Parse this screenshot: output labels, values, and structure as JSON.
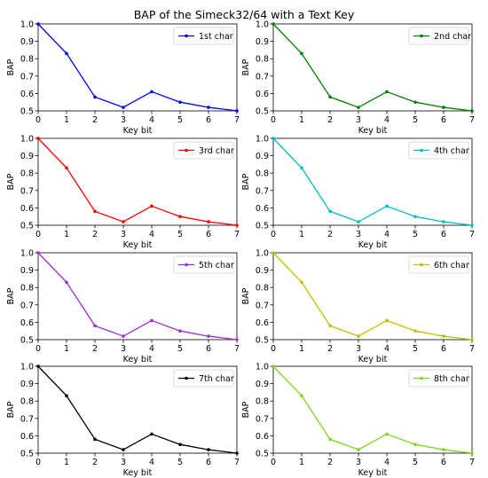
{
  "figure_title": "BAP of the Simeck32/64 with a Text Key",
  "chart_data": [
    {
      "type": "line",
      "title": "",
      "xlabel": "Key bit",
      "ylabel": "BAP",
      "x": [
        0,
        1,
        2,
        3,
        4,
        5,
        6,
        7
      ],
      "xlim": [
        0,
        7
      ],
      "ylim": [
        0.5,
        1.0
      ],
      "series": [
        {
          "name": "1st char",
          "color": "#0000ff",
          "values": [
            1.0,
            0.83,
            0.58,
            0.52,
            0.61,
            0.55,
            0.52,
            0.5
          ]
        }
      ],
      "legend": "top-right",
      "grid": false
    },
    {
      "type": "line",
      "title": "",
      "xlabel": "Key bit",
      "ylabel": "BAP",
      "x": [
        0,
        1,
        2,
        3,
        4,
        5,
        6,
        7
      ],
      "xlim": [
        0,
        7
      ],
      "ylim": [
        0.5,
        1.0
      ],
      "series": [
        {
          "name": "2nd char",
          "color": "#008000",
          "values": [
            1.0,
            0.83,
            0.58,
            0.52,
            0.61,
            0.55,
            0.52,
            0.5
          ]
        }
      ],
      "legend": "top-right",
      "grid": false
    },
    {
      "type": "line",
      "title": "",
      "xlabel": "Key bit",
      "ylabel": "BAP",
      "x": [
        0,
        1,
        2,
        3,
        4,
        5,
        6,
        7
      ],
      "xlim": [
        0,
        7
      ],
      "ylim": [
        0.5,
        1.0
      ],
      "series": [
        {
          "name": "3rd char",
          "color": "#ff0000",
          "values": [
            1.0,
            0.83,
            0.58,
            0.52,
            0.61,
            0.55,
            0.52,
            0.5
          ]
        }
      ],
      "legend": "top-right",
      "grid": false
    },
    {
      "type": "line",
      "title": "",
      "xlabel": "Key bit",
      "ylabel": "BAP",
      "x": [
        0,
        1,
        2,
        3,
        4,
        5,
        6,
        7
      ],
      "xlim": [
        0,
        7
      ],
      "ylim": [
        0.5,
        1.0
      ],
      "series": [
        {
          "name": "4th char",
          "color": "#00bfbf",
          "values": [
            1.0,
            0.83,
            0.58,
            0.52,
            0.61,
            0.55,
            0.52,
            0.5
          ]
        }
      ],
      "legend": "top-right",
      "grid": false
    },
    {
      "type": "line",
      "title": "",
      "xlabel": "Key bit",
      "ylabel": "BAP",
      "x": [
        0,
        1,
        2,
        3,
        4,
        5,
        6,
        7
      ],
      "xlim": [
        0,
        7
      ],
      "ylim": [
        0.5,
        1.0
      ],
      "series": [
        {
          "name": "5th char",
          "color": "#9a30d8",
          "values": [
            1.0,
            0.83,
            0.58,
            0.52,
            0.61,
            0.55,
            0.52,
            0.5
          ]
        }
      ],
      "legend": "top-right",
      "grid": false
    },
    {
      "type": "line",
      "title": "",
      "xlabel": "Key bit",
      "ylabel": "BAP",
      "x": [
        0,
        1,
        2,
        3,
        4,
        5,
        6,
        7
      ],
      "xlim": [
        0,
        7
      ],
      "ylim": [
        0.5,
        1.0
      ],
      "series": [
        {
          "name": "6th char",
          "color": "#bfbf00",
          "values": [
            1.0,
            0.83,
            0.58,
            0.52,
            0.61,
            0.55,
            0.52,
            0.5
          ]
        }
      ],
      "legend": "top-right",
      "grid": false
    },
    {
      "type": "line",
      "title": "",
      "xlabel": "Key bit",
      "ylabel": "BAP",
      "x": [
        0,
        1,
        2,
        3,
        4,
        5,
        6,
        7
      ],
      "xlim": [
        0,
        7
      ],
      "ylim": [
        0.5,
        1.0
      ],
      "series": [
        {
          "name": "7th char",
          "color": "#000000",
          "values": [
            1.0,
            0.83,
            0.58,
            0.52,
            0.61,
            0.55,
            0.52,
            0.5
          ]
        }
      ],
      "legend": "top-right",
      "grid": false
    },
    {
      "type": "line",
      "title": "",
      "xlabel": "Key bit",
      "ylabel": "BAP",
      "x": [
        0,
        1,
        2,
        3,
        4,
        5,
        6,
        7
      ],
      "xlim": [
        0,
        7
      ],
      "ylim": [
        0.5,
        1.0
      ],
      "series": [
        {
          "name": "8th char",
          "color": "#7fd41c",
          "values": [
            1.0,
            0.83,
            0.58,
            0.52,
            0.61,
            0.55,
            0.52,
            0.5
          ]
        }
      ],
      "legend": "top-right",
      "grid": false
    }
  ]
}
